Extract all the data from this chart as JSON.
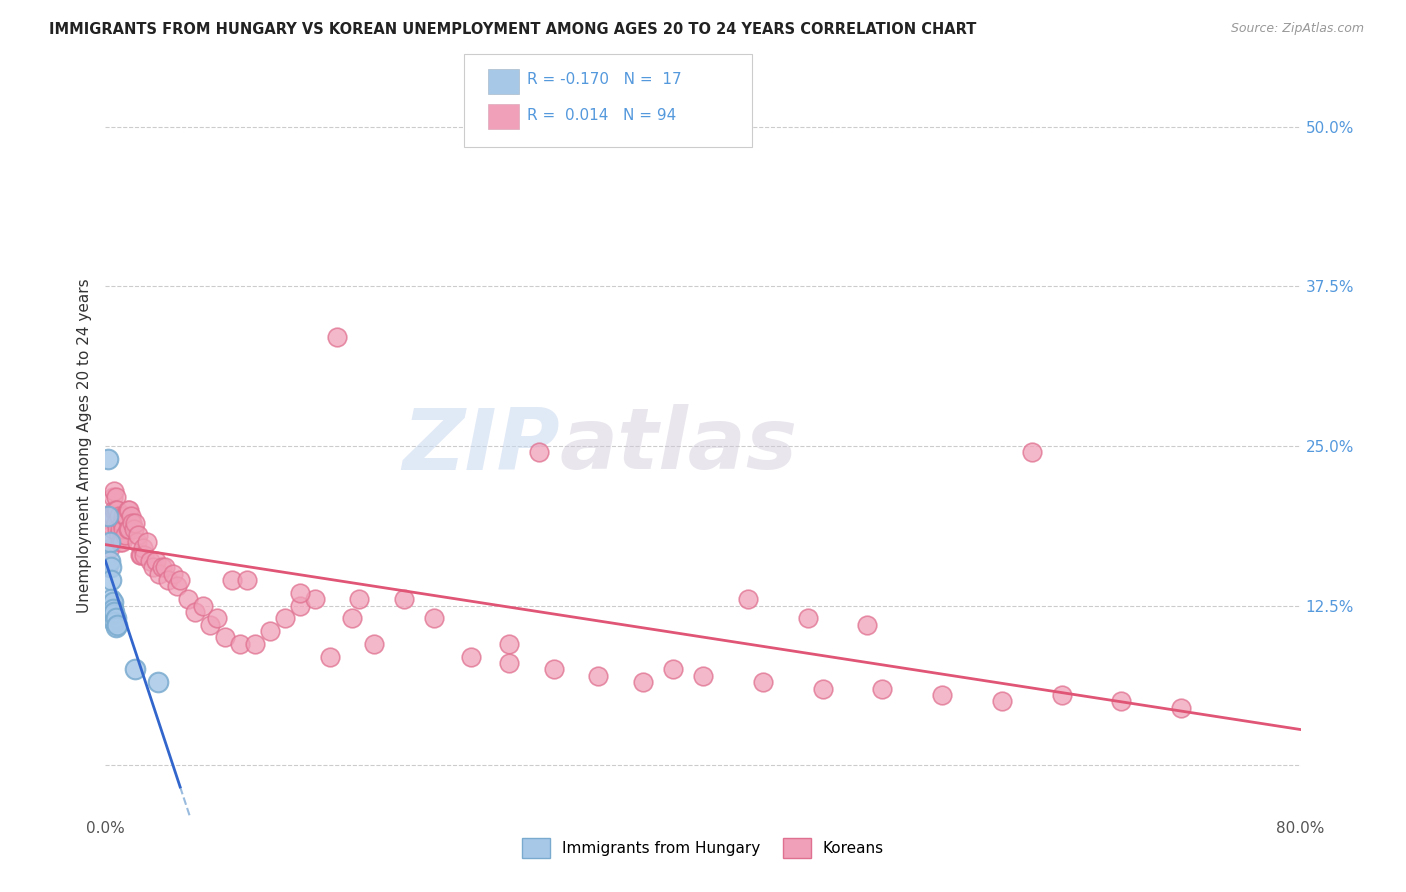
{
  "title": "IMMIGRANTS FROM HUNGARY VS KOREAN UNEMPLOYMENT AMONG AGES 20 TO 24 YEARS CORRELATION CHART",
  "source": "Source: ZipAtlas.com",
  "ylabel": "Unemployment Among Ages 20 to 24 years",
  "xlim": [
    0.0,
    0.8
  ],
  "ylim": [
    -0.04,
    0.54
  ],
  "ytick_positions": [
    0.0,
    0.125,
    0.25,
    0.375,
    0.5
  ],
  "ytick_labels_right": [
    "",
    "12.5%",
    "25.0%",
    "37.5%",
    "50.0%"
  ],
  "watermark_zip": "ZIP",
  "watermark_atlas": "atlas",
  "hungary_color": "#a8c8e8",
  "korean_color": "#f0a0b8",
  "hungary_edge_color": "#7aabcf",
  "korean_edge_color": "#e07090",
  "hungary_trend_color": "#3366cc",
  "korean_trend_color": "#e05575",
  "trend_dash_color": "#99bbdd",
  "grid_color": "#cccccc",
  "title_color": "#222222",
  "right_tick_color": "#5599dd",
  "source_color": "#999999",
  "hung_x": [
    0.002,
    0.002,
    0.003,
    0.003,
    0.004,
    0.004,
    0.004,
    0.005,
    0.005,
    0.005,
    0.006,
    0.006,
    0.007,
    0.007,
    0.008,
    0.02,
    0.035
  ],
  "hung_y": [
    0.24,
    0.195,
    0.175,
    0.16,
    0.155,
    0.145,
    0.13,
    0.128,
    0.122,
    0.118,
    0.12,
    0.112,
    0.115,
    0.108,
    0.11,
    0.075,
    0.065
  ],
  "kor_x": [
    0.002,
    0.003,
    0.003,
    0.004,
    0.004,
    0.005,
    0.005,
    0.005,
    0.006,
    0.006,
    0.007,
    0.007,
    0.007,
    0.008,
    0.008,
    0.009,
    0.009,
    0.01,
    0.01,
    0.011,
    0.011,
    0.012,
    0.012,
    0.013,
    0.013,
    0.014,
    0.015,
    0.015,
    0.016,
    0.016,
    0.017,
    0.018,
    0.019,
    0.02,
    0.021,
    0.022,
    0.023,
    0.024,
    0.025,
    0.026,
    0.028,
    0.03,
    0.032,
    0.034,
    0.036,
    0.038,
    0.04,
    0.042,
    0.045,
    0.048,
    0.05,
    0.055,
    0.06,
    0.065,
    0.07,
    0.075,
    0.08,
    0.09,
    0.1,
    0.11,
    0.12,
    0.13,
    0.14,
    0.15,
    0.165,
    0.18,
    0.2,
    0.22,
    0.245,
    0.27,
    0.3,
    0.33,
    0.36,
    0.4,
    0.44,
    0.48,
    0.52,
    0.56,
    0.6,
    0.64,
    0.68,
    0.72,
    0.155,
    0.29,
    0.62,
    0.43,
    0.47,
    0.51,
    0.13,
    0.17,
    0.085,
    0.095,
    0.27,
    0.38
  ],
  "kor_y": [
    0.155,
    0.195,
    0.17,
    0.195,
    0.18,
    0.21,
    0.195,
    0.185,
    0.215,
    0.2,
    0.21,
    0.2,
    0.19,
    0.2,
    0.185,
    0.195,
    0.18,
    0.185,
    0.175,
    0.19,
    0.175,
    0.195,
    0.185,
    0.195,
    0.18,
    0.195,
    0.2,
    0.185,
    0.2,
    0.185,
    0.195,
    0.19,
    0.185,
    0.19,
    0.175,
    0.18,
    0.165,
    0.165,
    0.17,
    0.165,
    0.175,
    0.16,
    0.155,
    0.16,
    0.15,
    0.155,
    0.155,
    0.145,
    0.15,
    0.14,
    0.145,
    0.13,
    0.12,
    0.125,
    0.11,
    0.115,
    0.1,
    0.095,
    0.095,
    0.105,
    0.115,
    0.125,
    0.13,
    0.085,
    0.115,
    0.095,
    0.13,
    0.115,
    0.085,
    0.095,
    0.075,
    0.07,
    0.065,
    0.07,
    0.065,
    0.06,
    0.06,
    0.055,
    0.05,
    0.055,
    0.05,
    0.045,
    0.335,
    0.245,
    0.245,
    0.13,
    0.115,
    0.11,
    0.135,
    0.13,
    0.145,
    0.145,
    0.08,
    0.075
  ]
}
